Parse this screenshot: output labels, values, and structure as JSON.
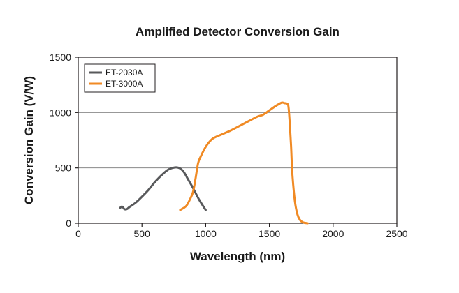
{
  "chart_data": {
    "type": "line",
    "title": "Amplified Detector Conversion Gain",
    "xlabel": "Wavelength (nm)",
    "ylabel": "Conversion Gain (V/W)",
    "xlim": [
      0,
      2500
    ],
    "ylim": [
      0,
      1500
    ],
    "xticks": [
      0,
      500,
      1000,
      1500,
      2000,
      2500
    ],
    "yticks": [
      0,
      500,
      1000,
      1500
    ],
    "grid": "horizontal",
    "legend_position": "top-left",
    "series": [
      {
        "name": "ET-2030A",
        "color": "#58595b",
        "x": [
          330,
          340,
          350,
          360,
          370,
          385,
          400,
          450,
          500,
          550,
          600,
          650,
          700,
          740,
          770,
          800,
          830,
          860,
          900,
          950,
          1000
        ],
        "y": [
          140,
          150,
          145,
          130,
          125,
          130,
          145,
          185,
          240,
          300,
          370,
          430,
          480,
          500,
          505,
          495,
          460,
          400,
          320,
          210,
          120
        ]
      },
      {
        "name": "ET-3000A",
        "color": "#f08a24",
        "x": [
          800,
          830,
          850,
          870,
          900,
          920,
          940,
          960,
          1000,
          1050,
          1100,
          1200,
          1300,
          1400,
          1450,
          1500,
          1550,
          1580,
          1600,
          1620,
          1640,
          1650,
          1660,
          1670,
          1680,
          1700,
          1720,
          1740,
          1760,
          1780,
          1800
        ],
        "y": [
          120,
          140,
          160,
          200,
          280,
          400,
          540,
          600,
          690,
          760,
          790,
          840,
          900,
          960,
          980,
          1020,
          1060,
          1080,
          1090,
          1085,
          1080,
          1050,
          900,
          700,
          450,
          200,
          80,
          30,
          10,
          3,
          0
        ]
      }
    ]
  }
}
